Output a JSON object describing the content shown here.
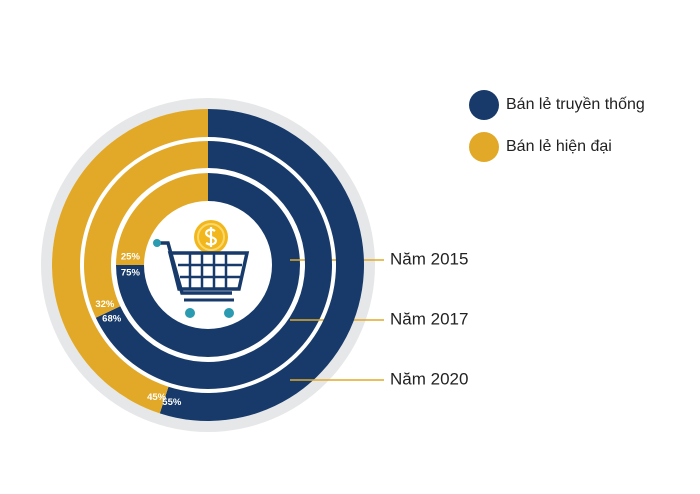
{
  "chart_data": {
    "type": "donut",
    "categories": [
      "Năm 2015",
      "Năm 2017",
      "Năm 2020"
    ],
    "series": [
      {
        "name": "Bán lẻ truyền thống",
        "color": "#173a6a",
        "values": [
          75,
          68,
          55
        ],
        "value_labels": [
          "75%",
          "68%",
          "55%"
        ]
      },
      {
        "name": "Bán lẻ hiện đại",
        "color": "#e2a929",
        "values": [
          25,
          32,
          45
        ],
        "value_labels": [
          "25%",
          "32%",
          "45%"
        ]
      }
    ]
  }
}
